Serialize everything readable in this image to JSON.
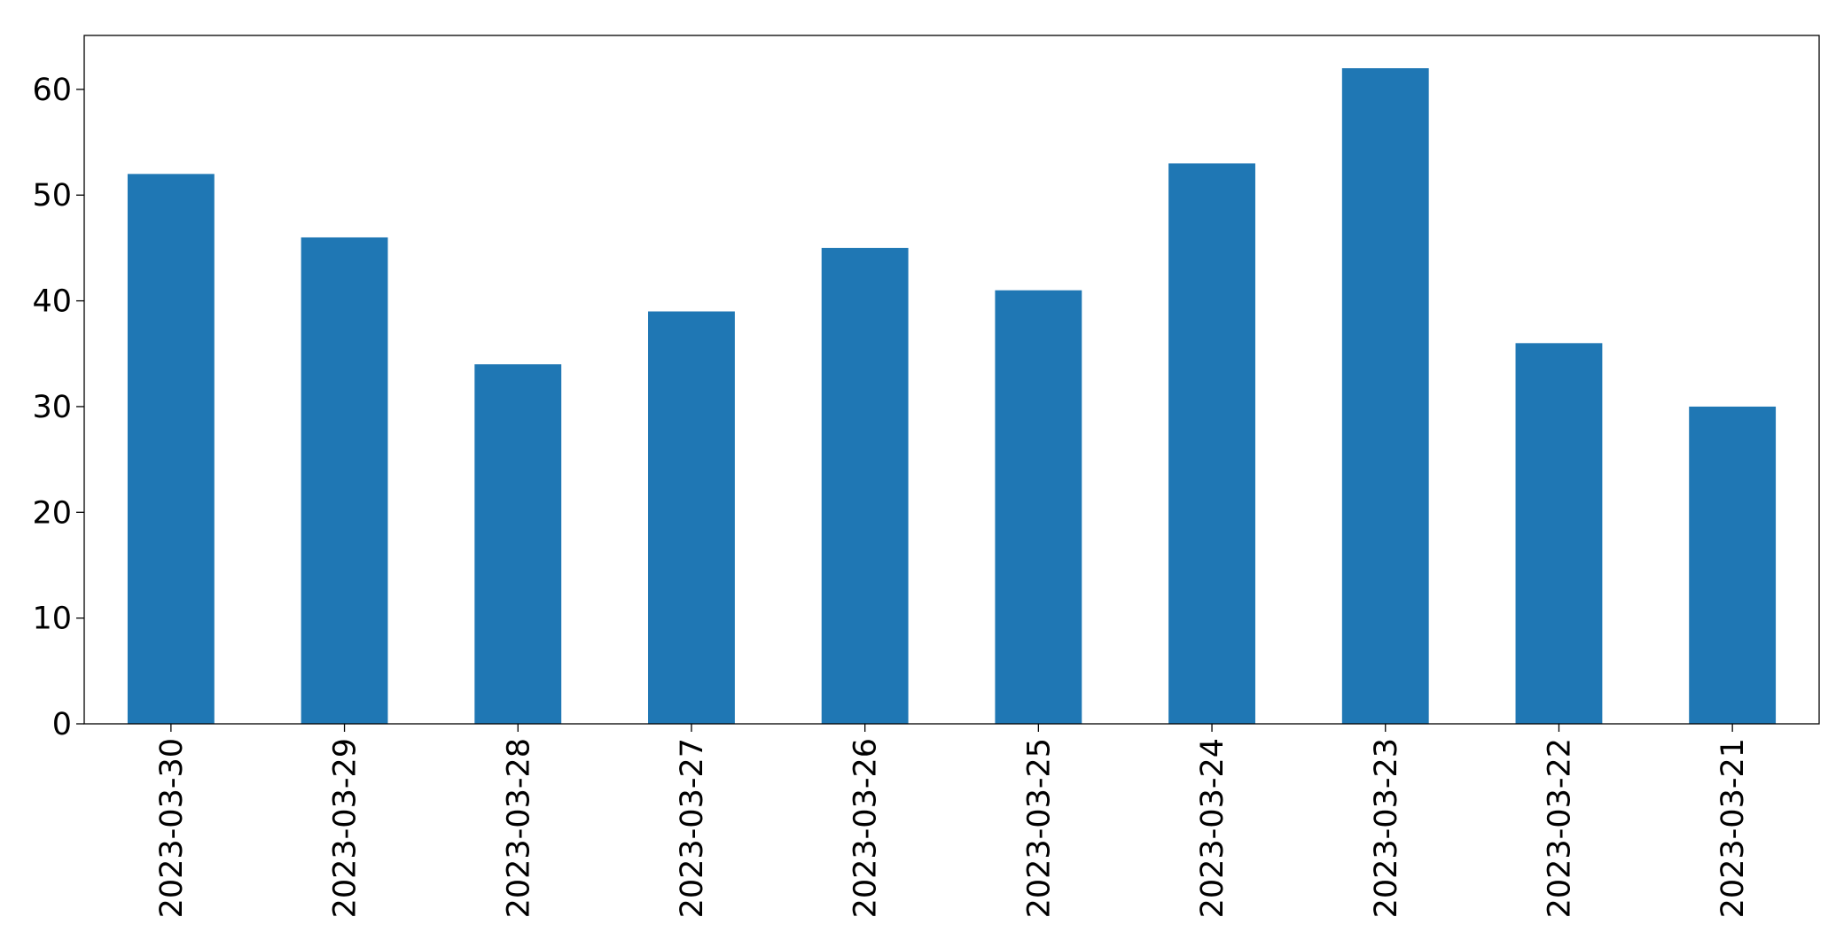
{
  "chart_data": {
    "type": "bar",
    "categories": [
      "2023-03-30",
      "2023-03-29",
      "2023-03-28",
      "2023-03-27",
      "2023-03-26",
      "2023-03-25",
      "2023-03-24",
      "2023-03-23",
      "2023-03-22",
      "2023-03-21"
    ],
    "values": [
      52,
      46,
      34,
      39,
      45,
      41,
      53,
      62,
      36,
      30
    ],
    "color": "#1f77b4",
    "ylim": [
      0,
      65.1
    ],
    "yticks": [
      0,
      10,
      20,
      30,
      40,
      50,
      60
    ],
    "grid": false
  }
}
